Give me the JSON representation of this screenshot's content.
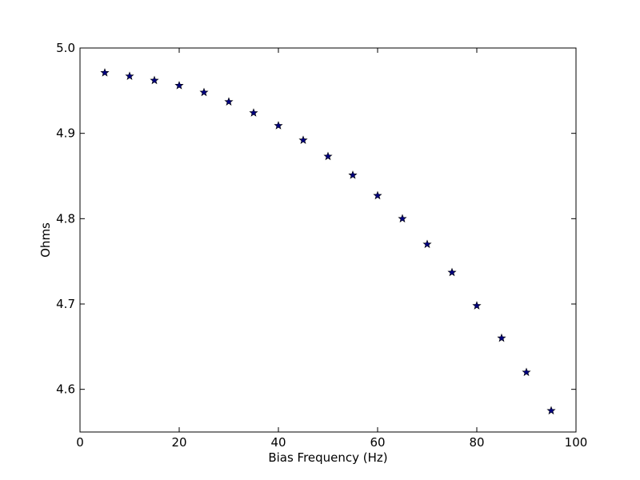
{
  "chart_data": {
    "type": "scatter",
    "title": "",
    "xlabel": "Bias Frequency (Hz)",
    "ylabel": "Ohms",
    "xlim": [
      0,
      100
    ],
    "ylim": [
      4.55,
      5.0
    ],
    "xticks": [
      "0",
      "20",
      "40",
      "60",
      "80",
      "100"
    ],
    "yticks": [
      "4.6",
      "4.7",
      "4.8",
      "4.9",
      "5.0"
    ],
    "grid": false,
    "legend": "none",
    "marker": "star",
    "series": [
      {
        "color": "#000080",
        "x": [
          5,
          10,
          15,
          20,
          25,
          30,
          35,
          40,
          45,
          50,
          55,
          60,
          65,
          70,
          75,
          80,
          85,
          90,
          95
        ],
        "y": [
          4.971,
          4.967,
          4.962,
          4.956,
          4.948,
          4.937,
          4.924,
          4.909,
          4.892,
          4.873,
          4.851,
          4.827,
          4.8,
          4.77,
          4.737,
          4.698,
          4.66,
          4.62,
          4.575
        ]
      }
    ]
  }
}
